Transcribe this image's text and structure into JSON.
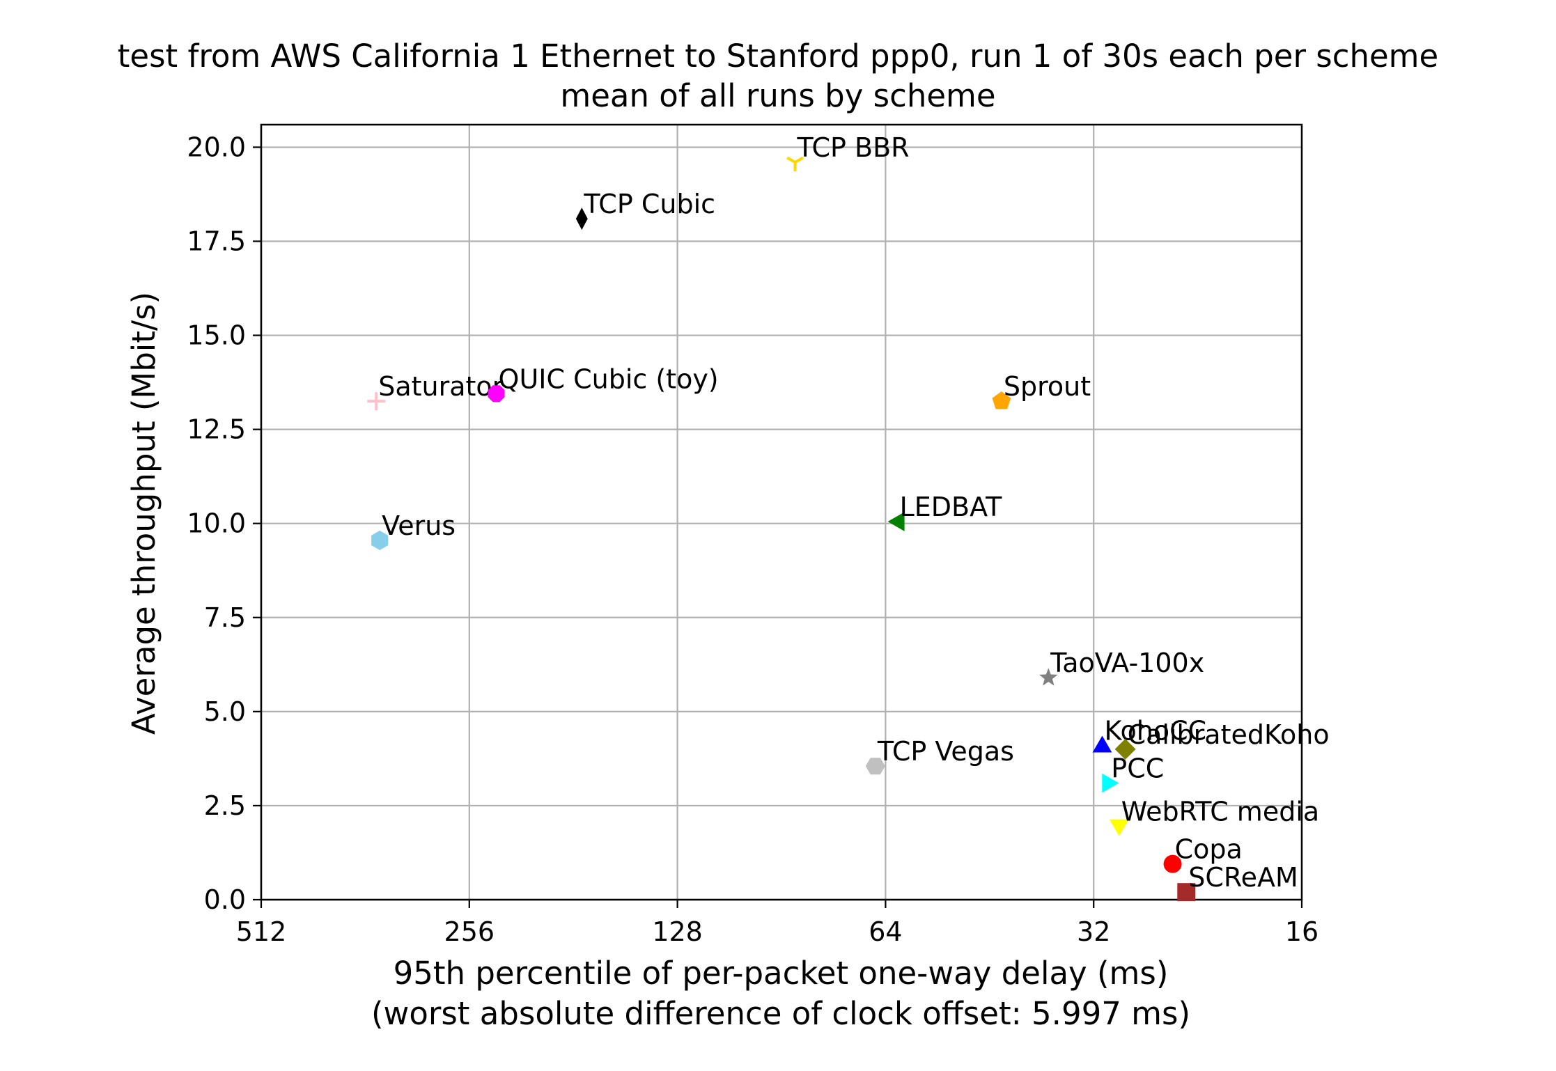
{
  "chart_data": {
    "type": "scatter",
    "title": "test from AWS California 1 Ethernet to Stanford ppp0, run 1 of 30s each per scheme",
    "subtitle": "mean of all runs by scheme",
    "xlabel": "95th percentile of per-packet one-way delay (ms)",
    "xlabel_note": "(worst absolute difference of clock offset: 5.997 ms)",
    "ylabel": "Average throughput (Mbit/s)",
    "x_scale": "log2",
    "x_inverted": true,
    "xlim": [
      512,
      16
    ],
    "ylim": [
      0,
      20.6
    ],
    "grid": true,
    "x_ticks": [
      {
        "value": 512,
        "label": "512"
      },
      {
        "value": 256,
        "label": "256"
      },
      {
        "value": 128,
        "label": "128"
      },
      {
        "value": 64,
        "label": "64"
      },
      {
        "value": 32,
        "label": "32"
      },
      {
        "value": 16,
        "label": "16"
      }
    ],
    "y_ticks": [
      {
        "value": 0,
        "label": "0.0"
      },
      {
        "value": 2.5,
        "label": "2.5"
      },
      {
        "value": 5,
        "label": "5.0"
      },
      {
        "value": 7.5,
        "label": "7.5"
      },
      {
        "value": 10,
        "label": "10.0"
      },
      {
        "value": 12.5,
        "label": "12.5"
      },
      {
        "value": 15,
        "label": "15.0"
      },
      {
        "value": 17.5,
        "label": "17.5"
      },
      {
        "value": 20,
        "label": "20.0"
      }
    ],
    "points": [
      {
        "name": "TCP BBR",
        "x": 86.5,
        "y": 19.6,
        "marker": "tri_down",
        "color": "#ffd700"
      },
      {
        "name": "TCP Cubic",
        "x": 176,
        "y": 18.1,
        "marker": "thin_diamond",
        "color": "#000000"
      },
      {
        "name": "Saturator",
        "x": 349,
        "y": 13.25,
        "marker": "plus",
        "color": "#ffc0cb"
      },
      {
        "name": "QUIC Cubic (toy)",
        "x": 234,
        "y": 13.45,
        "marker": "octagon",
        "color": "#ff00ff"
      },
      {
        "name": "Sprout",
        "x": 43.5,
        "y": 13.25,
        "marker": "pentagon",
        "color": "#ffa500"
      },
      {
        "name": "Verus",
        "x": 345,
        "y": 9.55,
        "marker": "hexagon",
        "color": "#87ceeb"
      },
      {
        "name": "LEDBAT",
        "x": 61.5,
        "y": 10.05,
        "marker": "triangle_left",
        "color": "#008000"
      },
      {
        "name": "TaoVA-100x",
        "x": 37.2,
        "y": 5.9,
        "marker": "star",
        "color": "#808080"
      },
      {
        "name": "KohoCC",
        "x": 31.1,
        "y": 4.1,
        "marker": "triangle_up",
        "color": "#0000ff"
      },
      {
        "name": "CalibratedKoho",
        "x": 28.8,
        "y": 4.0,
        "marker": "diamond",
        "color": "#808000"
      },
      {
        "name": "TCP Vegas",
        "x": 66.2,
        "y": 3.55,
        "marker": "hexagon2",
        "color": "#c0c0c0"
      },
      {
        "name": "PCC",
        "x": 30.4,
        "y": 3.1,
        "marker": "triangle_right",
        "color": "#00ffff"
      },
      {
        "name": "WebRTC media",
        "x": 29.4,
        "y": 1.95,
        "marker": "triangle_down",
        "color": "#ffff00"
      },
      {
        "name": "Copa",
        "x": 24.6,
        "y": 0.95,
        "marker": "circle",
        "color": "#ff0000"
      },
      {
        "name": "SCReAM",
        "x": 23.5,
        "y": 0.2,
        "marker": "square",
        "color": "#a52a2a"
      }
    ]
  }
}
